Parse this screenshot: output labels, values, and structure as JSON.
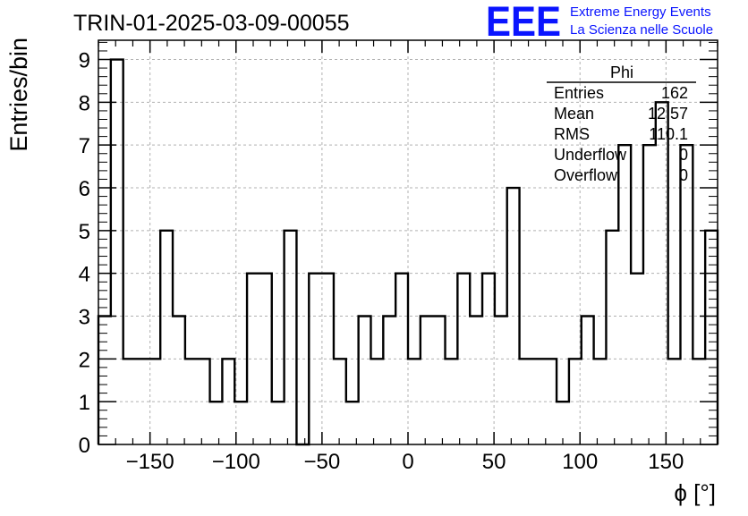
{
  "chart_data": {
    "type": "bar",
    "style": "step-histogram",
    "title": "TRIN-01-2025-03-09-00055",
    "xlabel": "ϕ [°]",
    "ylabel": "Entries/bin",
    "xlim": [
      -180,
      180
    ],
    "ylim": [
      0,
      9.45
    ],
    "bin_width": 7.2,
    "x_ticks": [
      -150,
      -100,
      -50,
      0,
      50,
      100,
      150
    ],
    "x_tick_labels": [
      "−150",
      "−100",
      "−50",
      "0",
      "50",
      "100",
      "150"
    ],
    "y_ticks": [
      0,
      1,
      2,
      3,
      4,
      5,
      6,
      7,
      8,
      9
    ],
    "y_tick_labels": [
      "0",
      "1",
      "2",
      "3",
      "4",
      "5",
      "6",
      "7",
      "8",
      "9"
    ],
    "grid": true,
    "values": [
      3,
      9,
      2,
      2,
      2,
      5,
      3,
      2,
      2,
      1,
      2,
      1,
      4,
      4,
      1,
      5,
      0,
      4,
      4,
      2,
      1,
      3,
      2,
      3,
      4,
      2,
      3,
      3,
      2,
      4,
      3,
      4,
      3,
      6,
      2,
      2,
      2,
      1,
      2,
      3,
      2,
      5,
      7,
      4,
      7,
      8,
      2,
      7,
      2,
      5
    ],
    "line_color": "#000000",
    "stats_box": {
      "title": "Phi",
      "rows": [
        {
          "label": "Entries",
          "value": "162"
        },
        {
          "label": "Mean",
          "value": "12.57"
        },
        {
          "label": "RMS",
          "value": "110.1"
        },
        {
          "label": "Underflow",
          "value": "0"
        },
        {
          "label": "Overflow",
          "value": "0"
        }
      ]
    }
  },
  "logo": {
    "mark": "EEE",
    "line1": "Extreme Energy Events",
    "line2": "La Scienza nelle Scuole",
    "color": "#0a14ff"
  }
}
